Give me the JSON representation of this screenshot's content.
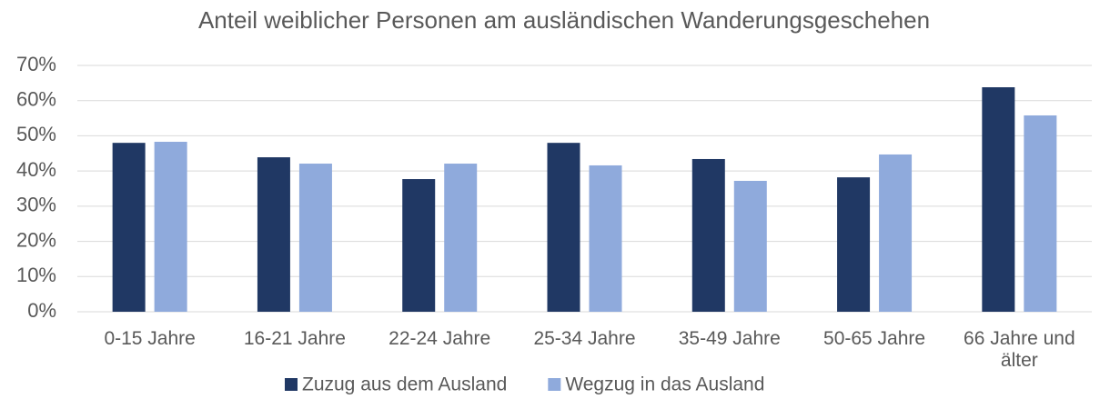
{
  "chart_data": {
    "type": "bar",
    "title": "Anteil weiblicher Personen am ausländischen Wanderungsgeschehen",
    "categories": [
      "0-15 Jahre",
      "16-21 Jahre",
      "22-24 Jahre",
      "25-34 Jahre",
      "35-49 Jahre",
      "50-65 Jahre",
      "66 Jahre und älter"
    ],
    "series": [
      {
        "name": "Zuzug aus dem Ausland",
        "color": "#203864",
        "values": [
          48.0,
          43.9,
          37.7,
          48.0,
          43.4,
          38.2,
          63.8
        ]
      },
      {
        "name": "Wegzug in das Ausland",
        "color": "#8faadc",
        "values": [
          48.3,
          42.1,
          42.1,
          41.6,
          37.2,
          44.7,
          55.8
        ]
      }
    ],
    "ylim": [
      0,
      70
    ],
    "yticks": [
      {
        "value": 0,
        "label": "0%"
      },
      {
        "value": 10,
        "label": "10%"
      },
      {
        "value": 20,
        "label": "20%"
      },
      {
        "value": 30,
        "label": "30%"
      },
      {
        "value": 40,
        "label": "40%"
      },
      {
        "value": 50,
        "label": "50%"
      },
      {
        "value": 60,
        "label": "60%"
      },
      {
        "value": 70,
        "label": "70%"
      }
    ],
    "grid": true,
    "legend": "bottom"
  }
}
